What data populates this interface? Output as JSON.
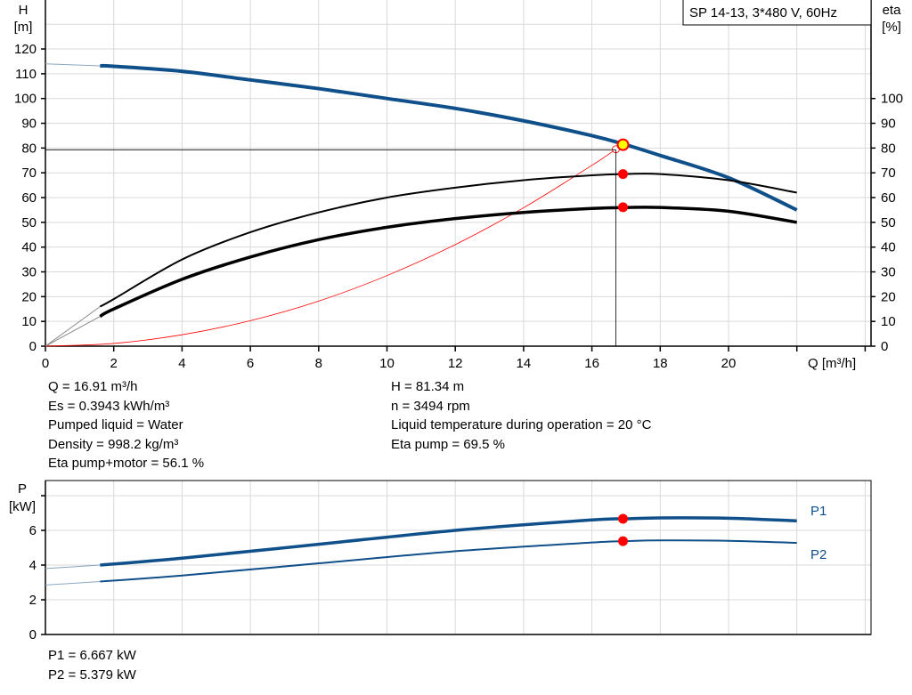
{
  "chart_data": [
    {
      "type": "line",
      "title": "SP 14-13, 3*480 V, 60Hz",
      "xlabel": "Q [m³/h]",
      "ylabel": "H\n[m]",
      "ylabel_right": "eta\n[%]",
      "ylabel_parts": [
        "H",
        "[m]"
      ],
      "ylabel_right_parts": [
        "eta",
        "[%]"
      ],
      "xlim": [
        0,
        24.2
      ],
      "ylim": [
        0,
        140
      ],
      "xticks": [
        0,
        2,
        4,
        6,
        8,
        10,
        12,
        14,
        16,
        18,
        20
      ],
      "yticks": [
        0,
        10,
        20,
        30,
        40,
        50,
        60,
        70,
        80,
        90,
        100,
        110,
        120
      ],
      "yticks_right": [
        0,
        10,
        20,
        30,
        40,
        50,
        60,
        70,
        80,
        90,
        100
      ],
      "grid": true,
      "series": [
        {
          "key": "H",
          "color": "#0f4f8a",
          "x": [
            0,
            1.6,
            2,
            4,
            6,
            8,
            10,
            12,
            14,
            16,
            17,
            18,
            20,
            22
          ],
          "y": [
            114,
            113.2,
            113,
            111,
            107.5,
            104,
            100,
            96,
            91,
            85,
            81.3,
            77,
            68,
            55
          ]
        },
        {
          "key": "eta_pump",
          "color": "#000000",
          "x": [
            0,
            1.6,
            2,
            4,
            6,
            8,
            10,
            12,
            14,
            16,
            17,
            18,
            20,
            22
          ],
          "y": [
            0,
            16,
            19,
            35,
            46,
            54,
            60,
            64,
            67,
            69,
            69.5,
            69.5,
            67,
            62
          ]
        },
        {
          "key": "eta_total",
          "color": "#000000",
          "x": [
            0,
            1.6,
            2,
            4,
            6,
            8,
            10,
            12,
            14,
            16,
            17,
            18,
            20,
            22
          ],
          "y": [
            0,
            12,
            15,
            27,
            36,
            43,
            48,
            51.5,
            54,
            55.6,
            56,
            56,
            54.5,
            50
          ]
        },
        {
          "key": "system_curve",
          "color": "#ff0000",
          "x": [
            0,
            2,
            4,
            6,
            8,
            10,
            12,
            14,
            16,
            16.7
          ],
          "y": [
            0,
            1.1,
            4.6,
            10.3,
            18.2,
            28.5,
            41.0,
            55.9,
            73.0,
            79.5
          ]
        }
      ],
      "operating_point": {
        "Q": 16.91,
        "H": 81.34,
        "eta_pump": 69.5,
        "eta_total": 56.1
      },
      "colors": {
        "curve": "#0f4f8a",
        "marker": "#ff0000",
        "duty_point": "#ffff00"
      }
    },
    {
      "type": "line",
      "ylabel_parts": [
        "P",
        "[kW]"
      ],
      "xlim": [
        0,
        24.2
      ],
      "ylim": [
        0,
        8.87
      ],
      "yticks": [
        0,
        2,
        4,
        6
      ],
      "grid": true,
      "series": [
        {
          "name": "P1",
          "color": "#0f4f8a",
          "x": [
            0,
            1.6,
            4,
            8,
            12,
            16,
            17,
            18,
            20,
            22
          ],
          "y": [
            3.8,
            4.0,
            4.4,
            5.2,
            6.0,
            6.6,
            6.667,
            6.72,
            6.7,
            6.55
          ]
        },
        {
          "name": "P2",
          "color": "#0f4f8a",
          "x": [
            0,
            1.6,
            4,
            8,
            12,
            16,
            17,
            18,
            20,
            22
          ],
          "y": [
            2.85,
            3.05,
            3.4,
            4.1,
            4.8,
            5.3,
            5.379,
            5.42,
            5.4,
            5.28
          ]
        }
      ],
      "operating_point": {
        "Q": 16.91,
        "P1": 6.667,
        "P2": 5.379
      }
    }
  ],
  "info": {
    "left": [
      "Q = 16.91 m³/h",
      "Es = 0.3943 kWh/m³",
      "Pumped liquid = Water",
      "Density = 998.2 kg/m³",
      "Eta pump+motor = 56.1 %"
    ],
    "right": [
      "H = 81.34 m",
      "n = 3494 rpm",
      "Liquid temperature during operation = 20 °C",
      "Eta pump = 69.5 %"
    ],
    "power": [
      "P1 = 6.667 kW",
      "P2 = 5.379 kW"
    ]
  }
}
